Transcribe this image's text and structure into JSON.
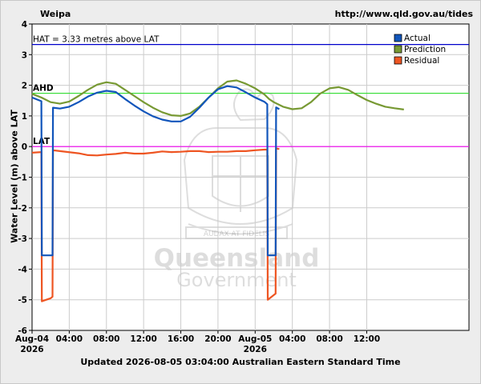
{
  "header": {
    "station": "Weipa",
    "url": "http://www.qld.gov.au/tides"
  },
  "footer": {
    "updated": "Updated 2026-08-05 03:04:00 Australian Eastern Standard Time"
  },
  "watermark": {
    "line1": "Queensland",
    "line2": "Government",
    "motto": "AUDAX AT FIDELIS"
  },
  "chart_data": {
    "type": "line",
    "xlabel": "",
    "ylabel": "Water Level (m) above LAT",
    "x_range_hours": [
      0,
      47
    ],
    "ylim": [
      -6,
      4
    ],
    "yticks": [
      -6,
      -5,
      -4,
      -3,
      -2,
      -1,
      0,
      1,
      2,
      3,
      4
    ],
    "xticks": [
      {
        "h": 0,
        "label": "Aug-04",
        "sub": "2026"
      },
      {
        "h": 4,
        "label": "04:00",
        "sub": ""
      },
      {
        "h": 8,
        "label": "08:00",
        "sub": ""
      },
      {
        "h": 12,
        "label": "12:00",
        "sub": ""
      },
      {
        "h": 16,
        "label": "16:00",
        "sub": ""
      },
      {
        "h": 20,
        "label": "20:00",
        "sub": ""
      },
      {
        "h": 24,
        "label": "Aug-05",
        "sub": "2026"
      },
      {
        "h": 28,
        "label": "04:00",
        "sub": ""
      },
      {
        "h": 32,
        "label": "08:00",
        "sub": ""
      },
      {
        "h": 36,
        "label": "12:00",
        "sub": ""
      }
    ],
    "grid": true,
    "legend_position": "top-right",
    "reference_lines": [
      {
        "label": "HAT = 3.33 metres above LAT",
        "value": 3.33,
        "color": "#0000cc"
      },
      {
        "label": "AHD",
        "value": 1.74,
        "color": "#33dd33"
      },
      {
        "label": "LAT",
        "value": 0,
        "color": "#ee00ee"
      }
    ],
    "series": [
      {
        "name": "Prediction",
        "color": "#779933",
        "points": [
          [
            0,
            1.72
          ],
          [
            1,
            1.6
          ],
          [
            2,
            1.45
          ],
          [
            3,
            1.4
          ],
          [
            4,
            1.47
          ],
          [
            5,
            1.65
          ],
          [
            6,
            1.85
          ],
          [
            7,
            2.02
          ],
          [
            8,
            2.1
          ],
          [
            9,
            2.05
          ],
          [
            10,
            1.85
          ],
          [
            11,
            1.65
          ],
          [
            12,
            1.45
          ],
          [
            13,
            1.27
          ],
          [
            14,
            1.12
          ],
          [
            15,
            1.02
          ],
          [
            16,
            1.0
          ],
          [
            17,
            1.08
          ],
          [
            18,
            1.3
          ],
          [
            19,
            1.6
          ],
          [
            20,
            1.9
          ],
          [
            21,
            2.12
          ],
          [
            22,
            2.16
          ],
          [
            23,
            2.05
          ],
          [
            24,
            1.9
          ],
          [
            25,
            1.7
          ],
          [
            25.5,
            1.55
          ],
          [
            26,
            1.45
          ],
          [
            27,
            1.3
          ],
          [
            28,
            1.22
          ],
          [
            29,
            1.25
          ],
          [
            30,
            1.45
          ],
          [
            31,
            1.73
          ],
          [
            32,
            1.9
          ],
          [
            33,
            1.94
          ],
          [
            34,
            1.85
          ],
          [
            35,
            1.68
          ],
          [
            36,
            1.52
          ],
          [
            37,
            1.4
          ],
          [
            38,
            1.3
          ],
          [
            39,
            1.25
          ],
          [
            40,
            1.21
          ]
        ]
      },
      {
        "name": "Actual",
        "color": "#1155bb",
        "points": [
          [
            0,
            1.6
          ],
          [
            1,
            1.48
          ],
          [
            1.05,
            -3.55
          ],
          [
            2.2,
            -3.55
          ],
          [
            2.25,
            1.27
          ],
          [
            3,
            1.24
          ],
          [
            4,
            1.3
          ],
          [
            5,
            1.45
          ],
          [
            6,
            1.63
          ],
          [
            7,
            1.76
          ],
          [
            8,
            1.82
          ],
          [
            9,
            1.78
          ],
          [
            10,
            1.55
          ],
          [
            11,
            1.34
          ],
          [
            12,
            1.15
          ],
          [
            13,
            0.99
          ],
          [
            14,
            0.88
          ],
          [
            15,
            0.82
          ],
          [
            16,
            0.82
          ],
          [
            17,
            0.97
          ],
          [
            18,
            1.27
          ],
          [
            19,
            1.6
          ],
          [
            20,
            1.87
          ],
          [
            21,
            1.97
          ],
          [
            22,
            1.93
          ],
          [
            23,
            1.77
          ],
          [
            24,
            1.6
          ],
          [
            25,
            1.46
          ],
          [
            25.3,
            1.38
          ],
          [
            25.35,
            -3.55
          ],
          [
            26.2,
            -3.55
          ],
          [
            26.25,
            1.28
          ],
          [
            26.6,
            1.22
          ]
        ]
      },
      {
        "name": "Residual",
        "color": "#ee5522",
        "points": [
          [
            0,
            -0.2
          ],
          [
            1,
            -0.18
          ],
          [
            1.05,
            -5.05
          ],
          [
            2,
            -4.95
          ],
          [
            2.2,
            -4.9
          ],
          [
            2.25,
            -0.12
          ],
          [
            3,
            -0.15
          ],
          [
            5,
            -0.22
          ],
          [
            6,
            -0.28
          ],
          [
            7,
            -0.29
          ],
          [
            8,
            -0.26
          ],
          [
            9,
            -0.24
          ],
          [
            10,
            -0.2
          ],
          [
            11,
            -0.23
          ],
          [
            12,
            -0.23
          ],
          [
            13,
            -0.2
          ],
          [
            14,
            -0.16
          ],
          [
            15,
            -0.18
          ],
          [
            16,
            -0.17
          ],
          [
            17,
            -0.15
          ],
          [
            18,
            -0.15
          ],
          [
            19,
            -0.18
          ],
          [
            20,
            -0.17
          ],
          [
            21,
            -0.17
          ],
          [
            22,
            -0.15
          ],
          [
            23,
            -0.15
          ],
          [
            24,
            -0.12
          ],
          [
            25,
            -0.1
          ],
          [
            25.3,
            -0.1
          ],
          [
            25.35,
            -5.0
          ],
          [
            26.2,
            -4.8
          ],
          [
            26.25,
            -0.06
          ],
          [
            26.6,
            -0.08
          ]
        ]
      }
    ]
  }
}
